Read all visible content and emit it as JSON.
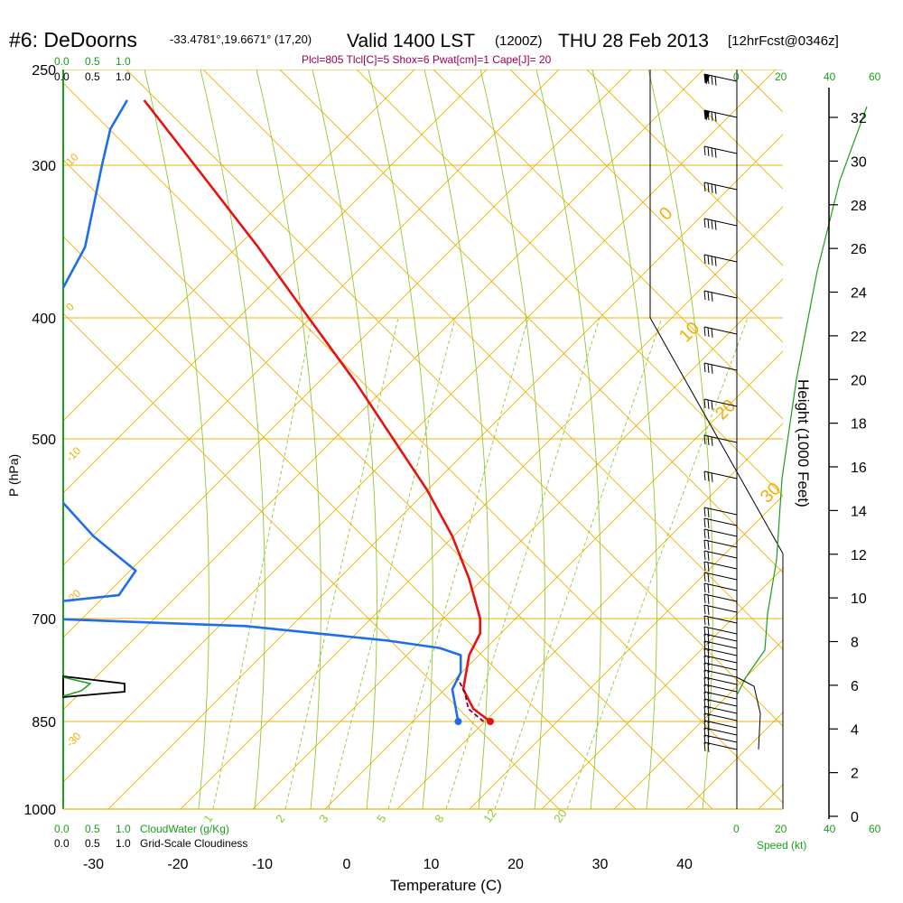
{
  "header": {
    "station": "#6: DeDoorns",
    "coords": "-33.4781°,19.6671° (17,20)",
    "valid": "Valid 1400 LST",
    "zulu": "(1200Z)",
    "date": "THU 28 Feb 2013",
    "forecast": "[12hrFcst@0346z]",
    "indices": "Plcl=805 Tlcl[C]=5 Shox=6 Pwat[cm]=1 Cape[J]= 20"
  },
  "colors": {
    "isotherm": "#f0b000",
    "dry_adiabat": "#f0b000",
    "moist_adiabat": "#90c830",
    "mixing_ratio": "#90c830",
    "temperature": "#e81010",
    "dewpoint": "#1e6ee8",
    "parcel": "#800040",
    "height_axis": "#000000",
    "green_text": "#1a9e1a",
    "index_text": "#9a0050"
  },
  "chart_data": {
    "type": "skew-t",
    "title": "#6: DeDoorns Valid 1400 LST (1200Z) THU 28 Feb 2013",
    "xlabel": "Temperature (C)",
    "ylabel": "P (hPa)",
    "right_axis_label": "Height (1000 Feet)",
    "x_ticks": [
      -30,
      -20,
      -10,
      0,
      10,
      20,
      30,
      40
    ],
    "pressure_ticks": [
      250,
      300,
      400,
      500,
      700,
      850,
      1000
    ],
    "height_ticks": [
      0,
      2,
      4,
      6,
      8,
      10,
      12,
      14,
      16,
      18,
      20,
      22,
      24,
      26,
      28,
      30,
      32
    ],
    "cloud_scale_top": [
      "0.0",
      "0.5",
      "1.0"
    ],
    "cloud_scale_bottom": [
      "0.0",
      "0.5",
      "1.0"
    ],
    "cloudwater_label": "CloudWater (g/Kg)",
    "cloudiness_label": "Grid-Scale Cloudiness",
    "speed_ticks": [
      "0",
      "20",
      "40",
      "60"
    ],
    "speed_label": "Speed (kt)",
    "isotherm_labels": [
      "10",
      "0",
      "-10",
      "-20",
      "-30",
      "0",
      "10",
      "20",
      "30"
    ],
    "mixing_ratio_labels": [
      "1",
      "2",
      "3",
      "5",
      "8",
      "12",
      "20"
    ],
    "temperature_profile": [
      [
        850,
        17
      ],
      [
        830,
        15
      ],
      [
        800,
        13.8
      ],
      [
        750,
        14.5
      ],
      [
        720,
        15.8
      ],
      [
        700,
        15.8
      ],
      [
        650,
        14.5
      ],
      [
        600,
        12.5
      ],
      [
        550,
        9.5
      ],
      [
        500,
        5.5
      ],
      [
        450,
        1
      ],
      [
        400,
        -4.5
      ],
      [
        350,
        -10.5
      ],
      [
        300,
        -18
      ],
      [
        265,
        -24
      ]
    ],
    "dewpoint_profile": [
      [
        850,
        13.2
      ],
      [
        800,
        12.5
      ],
      [
        775,
        13.5
      ],
      [
        750,
        13.5
      ],
      [
        740,
        11
      ],
      [
        730,
        5
      ],
      [
        710,
        -12
      ],
      [
        700,
        -36
      ],
      [
        680,
        -36
      ],
      [
        670,
        -27
      ],
      [
        640,
        -25
      ],
      [
        600,
        -30
      ],
      [
        550,
        -35
      ],
      [
        500,
        -38
      ],
      [
        450,
        -39
      ],
      [
        400,
        -35.5
      ],
      [
        350,
        -31
      ],
      [
        300,
        -29
      ],
      [
        280,
        -28
      ],
      [
        265,
        -26
      ]
    ],
    "parcel_path": [
      [
        850,
        16.2
      ],
      [
        830,
        14.4
      ],
      [
        805,
        14
      ],
      [
        785,
        13.2
      ]
    ],
    "surface_markers": {
      "temperature": 17,
      "dewpoint": 13.2,
      "pressure": 850
    }
  }
}
